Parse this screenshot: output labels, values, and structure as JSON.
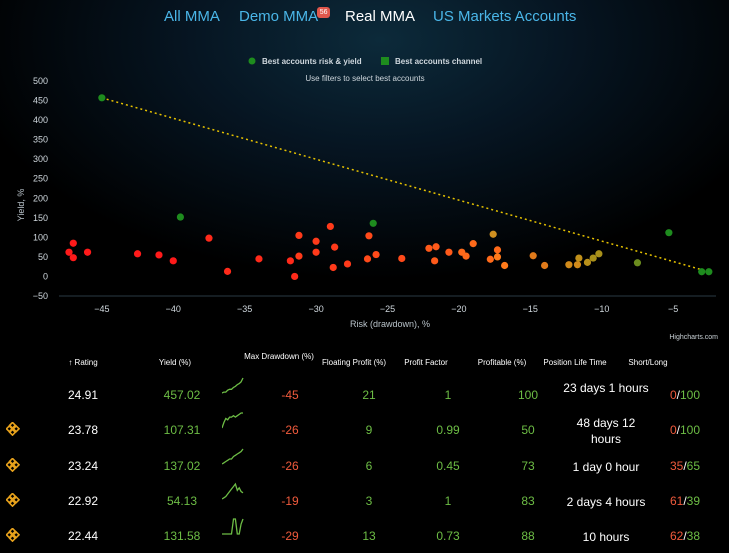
{
  "tabs": [
    {
      "label": "All MMA",
      "active": false
    },
    {
      "label": "Demo MMA",
      "active": false,
      "badge": "56"
    },
    {
      "label": "Real MMA",
      "active": true
    },
    {
      "label": "US Markets Accounts",
      "active": false
    }
  ],
  "chart_data": {
    "type": "scatter",
    "legend": [
      {
        "name": "Best accounts risk & yield",
        "color": "#1e8c1e",
        "marker": "circle"
      },
      {
        "name": "Best accounts channel",
        "color": "#1e8c1e",
        "marker": "square"
      }
    ],
    "subtitle": "Use filters to select best accounts",
    "xlabel": "Risk (drawdown), %",
    "ylabel": "Yield, %",
    "xlim": [
      -48,
      -2
    ],
    "ylim": [
      -50,
      500
    ],
    "x_ticks": [
      -45,
      -40,
      -35,
      -30,
      -25,
      -20,
      -15,
      -10,
      -5
    ],
    "y_ticks": [
      500,
      450,
      400,
      350,
      300,
      250,
      200,
      150,
      100,
      50,
      0,
      -50
    ],
    "trendline": {
      "from": [
        -45,
        457
      ],
      "to": [
        -2.5,
        12
      ],
      "color": "#e6c200",
      "style": "dotted"
    },
    "credit": "Highcharts.com",
    "points": [
      {
        "x": -45,
        "y": 457,
        "color": "#1e8c1e"
      },
      {
        "x": -39.5,
        "y": 152,
        "color": "#1e8c1e"
      },
      {
        "x": -26,
        "y": 136,
        "color": "#1e8c1e"
      },
      {
        "x": -5.3,
        "y": 112,
        "color": "#1e8c1e"
      },
      {
        "x": -2.5,
        "y": 12,
        "color": "#1e8c1e"
      },
      {
        "x": -3,
        "y": 12,
        "color": "#1e8c1e"
      },
      {
        "x": -7.5,
        "y": 35,
        "color": "#6b8c1e"
      },
      {
        "x": -47,
        "y": 85,
        "color": "#ff1a1a"
      },
      {
        "x": -47.3,
        "y": 62,
        "color": "#ff1a1a"
      },
      {
        "x": -47,
        "y": 48,
        "color": "#ff1a1a"
      },
      {
        "x": -46,
        "y": 62,
        "color": "#ff1a1a"
      },
      {
        "x": -42.5,
        "y": 58,
        "color": "#ff1a1a"
      },
      {
        "x": -41,
        "y": 55,
        "color": "#ff1a1a"
      },
      {
        "x": -40,
        "y": 40,
        "color": "#ff1a1a"
      },
      {
        "x": -37.5,
        "y": 98,
        "color": "#ff2a1a"
      },
      {
        "x": -36.2,
        "y": 13,
        "color": "#ff2a1a"
      },
      {
        "x": -34,
        "y": 45,
        "color": "#ff2a1a"
      },
      {
        "x": -31.8,
        "y": 40,
        "color": "#ff2a1a"
      },
      {
        "x": -31.5,
        "y": 0,
        "color": "#ff2a1a"
      },
      {
        "x": -31.2,
        "y": 52,
        "color": "#ff3a1a"
      },
      {
        "x": -31.2,
        "y": 105,
        "color": "#ff3a1a"
      },
      {
        "x": -30,
        "y": 62,
        "color": "#ff3a1a"
      },
      {
        "x": -30,
        "y": 90,
        "color": "#ff3a1a"
      },
      {
        "x": -29,
        "y": 128,
        "color": "#ff3a1a"
      },
      {
        "x": -28.7,
        "y": 75,
        "color": "#ff3a1a"
      },
      {
        "x": -28.8,
        "y": 23,
        "color": "#ff3a1a"
      },
      {
        "x": -27.8,
        "y": 32,
        "color": "#ff3a1a"
      },
      {
        "x": -26.3,
        "y": 104,
        "color": "#ff4a1a"
      },
      {
        "x": -26.4,
        "y": 45,
        "color": "#ff4a1a"
      },
      {
        "x": -25.8,
        "y": 56,
        "color": "#ff4a1a"
      },
      {
        "x": -24,
        "y": 46,
        "color": "#ff4a1a"
      },
      {
        "x": -22.1,
        "y": 72,
        "color": "#ff5a1a"
      },
      {
        "x": -21.6,
        "y": 76,
        "color": "#ff5a1a"
      },
      {
        "x": -21.7,
        "y": 40,
        "color": "#ff5a1a"
      },
      {
        "x": -20.7,
        "y": 62,
        "color": "#ff5a1a"
      },
      {
        "x": -19.8,
        "y": 62,
        "color": "#ff6a1a"
      },
      {
        "x": -19.5,
        "y": 52,
        "color": "#ff6a1a"
      },
      {
        "x": -19,
        "y": 84,
        "color": "#ff6a1a"
      },
      {
        "x": -17.8,
        "y": 44,
        "color": "#ff6a1a"
      },
      {
        "x": -17.3,
        "y": 68,
        "color": "#ff6a1a"
      },
      {
        "x": -17.3,
        "y": 50,
        "color": "#ff7a1a"
      },
      {
        "x": -16.8,
        "y": 28,
        "color": "#ff7a1a"
      },
      {
        "x": -17.6,
        "y": 108,
        "color": "#d09020"
      },
      {
        "x": -14.8,
        "y": 53,
        "color": "#e07a1a"
      },
      {
        "x": -14.0,
        "y": 28,
        "color": "#e07a1a"
      },
      {
        "x": -12.3,
        "y": 30,
        "color": "#d08a1a"
      },
      {
        "x": -11.7,
        "y": 30,
        "color": "#d08a1a"
      },
      {
        "x": -11.6,
        "y": 47,
        "color": "#c0901a"
      },
      {
        "x": -10.6,
        "y": 47,
        "color": "#a8901a"
      },
      {
        "x": -10.2,
        "y": 58,
        "color": "#a8901a"
      },
      {
        "x": -11.0,
        "y": 36,
        "color": "#b8901a"
      }
    ]
  },
  "table": {
    "headers": {
      "rating": "↑ Rating",
      "yield": "Yield (%)",
      "max_drawdown": "Max Drawdown (%)",
      "floating": "Floating Profit (%)",
      "profit_factor": "Profit Factor",
      "profitable": "Profitable (%)",
      "life": "Position Life Time",
      "short_long": "Short/Long"
    },
    "rows": [
      {
        "fav": false,
        "rating": "24.91",
        "yield": "457.02",
        "drawdown": "-45",
        "floating": "21",
        "pf": "1",
        "profitable": "100",
        "life": "23 days 1 hours",
        "short": "0",
        "long": "100",
        "spark": [
          2,
          3,
          3,
          5,
          6,
          6,
          8,
          9,
          11,
          12,
          14,
          18
        ]
      },
      {
        "fav": true,
        "rating": "23.78",
        "yield": "107.31",
        "drawdown": "-26",
        "floating": "9",
        "pf": "0.99",
        "profitable": "50",
        "life": "48 days 12 hours",
        "short": "0",
        "long": "100",
        "spark": [
          2,
          6,
          9,
          8,
          10,
          10,
          11,
          10,
          11,
          12,
          13,
          13
        ]
      },
      {
        "fav": true,
        "rating": "23.24",
        "yield": "137.02",
        "drawdown": "-26",
        "floating": "6",
        "pf": "0.45",
        "profitable": "73",
        "life": "1 day 0 hour",
        "short": "35",
        "long": "65",
        "spark": [
          2,
          3,
          4,
          5,
          6,
          6,
          8,
          9,
          10,
          11,
          12,
          14
        ]
      },
      {
        "fav": true,
        "rating": "22.92",
        "yield": "54.13",
        "drawdown": "-19",
        "floating": "3",
        "pf": "1",
        "profitable": "83",
        "life": "2 days 4 hours",
        "short": "61",
        "long": "39",
        "spark": [
          2,
          3,
          4,
          6,
          8,
          10,
          12,
          14,
          9,
          11,
          8,
          7
        ]
      },
      {
        "fav": true,
        "rating": "22.44",
        "yield": "131.58",
        "drawdown": "-29",
        "floating": "13",
        "pf": "0.73",
        "profitable": "88",
        "life": "10 hours",
        "short": "62",
        "long": "38",
        "spark": [
          2,
          2,
          2,
          2,
          2,
          2,
          14,
          14,
          2,
          2,
          10,
          14
        ]
      }
    ]
  },
  "colors": {
    "tab_inactive": "#4ab6e8",
    "positive": "#6dbd45",
    "negative": "#f05a3c",
    "favorite": "#e8a21c"
  }
}
